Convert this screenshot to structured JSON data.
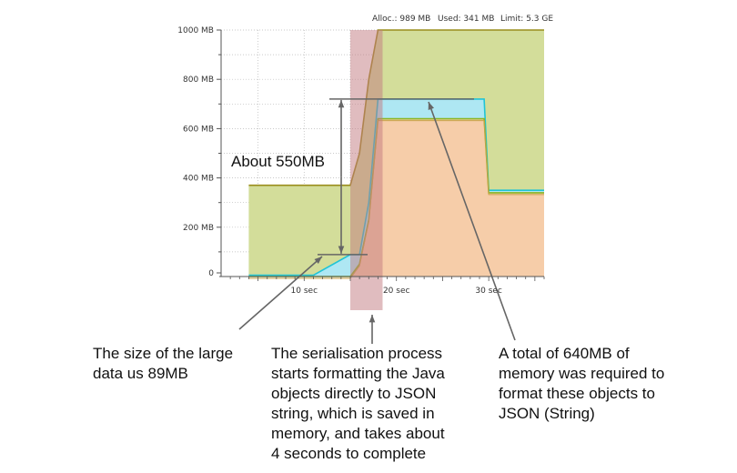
{
  "header": {
    "alloc": "Alloc.: 989 MB",
    "used": "Used: 341 MB",
    "limit": "Limit: 5.3 GE"
  },
  "chart_data": {
    "type": "area",
    "x_ticks": [
      "10 sec",
      "20 sec",
      "30 sec"
    ],
    "y_ticks": [
      "0",
      "200 MB",
      "400 MB",
      "600 MB",
      "800 MB",
      "1000 MB"
    ],
    "xlim": [
      1,
      36
    ],
    "ylim": [
      0,
      1000
    ],
    "grid": true,
    "series": [
      {
        "color": "#d3dd9a",
        "x": [
          4,
          15,
          16,
          17,
          18,
          26,
          30,
          36
        ],
        "values": [
          370,
          370,
          500,
          800,
          1000,
          1000,
          1000,
          1000
        ]
      },
      {
        "color": "#aee7f3",
        "x": [
          4,
          11,
          15,
          16,
          17,
          18,
          26,
          29.5,
          30,
          36
        ],
        "values": [
          5,
          5,
          89,
          89,
          300,
          720,
          720,
          720,
          350,
          350
        ]
      },
      {
        "color": "#f6cda9",
        "x": [
          4,
          15,
          16,
          17,
          18,
          26,
          29.5,
          30,
          36
        ],
        "values": [
          0,
          0,
          50,
          230,
          640,
          640,
          640,
          340,
          340
        ]
      }
    ],
    "serialisation_window": [
      15,
      18.5
    ],
    "annotations": {
      "range_label": "About 550MB"
    }
  },
  "captions": {
    "left": [
      "The size of the large",
      "data us 89MB"
    ],
    "middle": [
      "The serialisation process",
      "starts formatting the Java",
      "objects directly to JSON",
      "string, which is saved in",
      "memory, and takes about",
      "4 seconds to complete"
    ],
    "right": [
      "A total of 640MB of",
      "memory was required to",
      "format these objects to",
      "JSON (String)"
    ]
  }
}
